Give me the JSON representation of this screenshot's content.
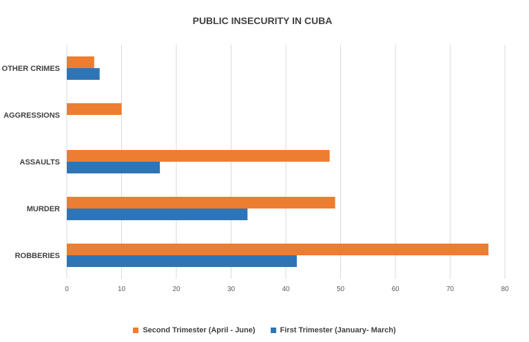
{
  "chart_data": {
    "type": "bar",
    "orientation": "horizontal",
    "title": "PUBLIC INSECURITY IN CUBA",
    "categories": [
      "OTHER CRIMES",
      "AGGRESSIONS",
      "ASSAULTS",
      "MURDER",
      "ROBBERIES"
    ],
    "series": [
      {
        "name": "Second Trimester (April - June)",
        "color": "#ED7D31",
        "values": [
          5,
          10,
          48,
          49,
          77
        ]
      },
      {
        "name": "First Trimester (January- March)",
        "color": "#2E75B6",
        "values": [
          6,
          0,
          17,
          33,
          42
        ]
      }
    ],
    "xlim": [
      0,
      80
    ],
    "xticks": [
      "0",
      "10",
      "20",
      "30",
      "40",
      "50",
      "60",
      "70",
      "80"
    ],
    "grid": true,
    "legend_position": "bottom"
  }
}
